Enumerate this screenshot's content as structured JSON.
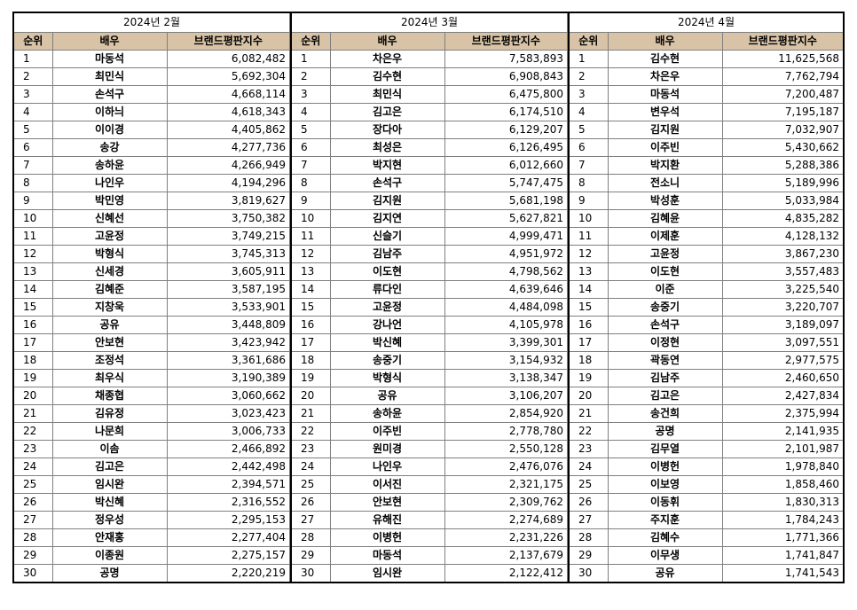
{
  "columns": {
    "rank": "순위",
    "actor": "배우",
    "score": "브랜드평판지수"
  },
  "months": [
    {
      "title": "2024년 2월",
      "rows": [
        {
          "rank": "1",
          "actor": "마동석",
          "score": "6,082,482"
        },
        {
          "rank": "2",
          "actor": "최민식",
          "score": "5,692,304"
        },
        {
          "rank": "3",
          "actor": "손석구",
          "score": "4,668,114"
        },
        {
          "rank": "4",
          "actor": "이하늬",
          "score": "4,618,343"
        },
        {
          "rank": "5",
          "actor": "이이경",
          "score": "4,405,862"
        },
        {
          "rank": "6",
          "actor": "송강",
          "score": "4,277,736"
        },
        {
          "rank": "7",
          "actor": "송하윤",
          "score": "4,266,949"
        },
        {
          "rank": "8",
          "actor": "나인우",
          "score": "4,194,296"
        },
        {
          "rank": "9",
          "actor": "박민영",
          "score": "3,819,627"
        },
        {
          "rank": "10",
          "actor": "신혜선",
          "score": "3,750,382"
        },
        {
          "rank": "11",
          "actor": "고윤정",
          "score": "3,749,215"
        },
        {
          "rank": "12",
          "actor": "박형식",
          "score": "3,745,313"
        },
        {
          "rank": "13",
          "actor": "신세경",
          "score": "3,605,911"
        },
        {
          "rank": "14",
          "actor": "김혜준",
          "score": "3,587,195"
        },
        {
          "rank": "15",
          "actor": "지창욱",
          "score": "3,533,901"
        },
        {
          "rank": "16",
          "actor": "공유",
          "score": "3,448,809"
        },
        {
          "rank": "17",
          "actor": "안보현",
          "score": "3,423,942"
        },
        {
          "rank": "18",
          "actor": "조정석",
          "score": "3,361,686"
        },
        {
          "rank": "19",
          "actor": "최우식",
          "score": "3,190,389"
        },
        {
          "rank": "20",
          "actor": "채종협",
          "score": "3,060,662"
        },
        {
          "rank": "21",
          "actor": "김유정",
          "score": "3,023,423"
        },
        {
          "rank": "22",
          "actor": "나문희",
          "score": "3,006,733"
        },
        {
          "rank": "23",
          "actor": "이솜",
          "score": "2,466,892"
        },
        {
          "rank": "24",
          "actor": "김고은",
          "score": "2,442,498"
        },
        {
          "rank": "25",
          "actor": "임시완",
          "score": "2,394,571"
        },
        {
          "rank": "26",
          "actor": "박신혜",
          "score": "2,316,552"
        },
        {
          "rank": "27",
          "actor": "정우성",
          "score": "2,295,153"
        },
        {
          "rank": "28",
          "actor": "안재홍",
          "score": "2,277,404"
        },
        {
          "rank": "29",
          "actor": "이종원",
          "score": "2,275,157"
        },
        {
          "rank": "30",
          "actor": "공명",
          "score": "2,220,219"
        }
      ]
    },
    {
      "title": "2024년 3월",
      "rows": [
        {
          "rank": "1",
          "actor": "차은우",
          "score": "7,583,893"
        },
        {
          "rank": "2",
          "actor": "김수현",
          "score": "6,908,843"
        },
        {
          "rank": "3",
          "actor": "최민식",
          "score": "6,475,800"
        },
        {
          "rank": "4",
          "actor": "김고은",
          "score": "6,174,510"
        },
        {
          "rank": "5",
          "actor": "장다아",
          "score": "6,129,207"
        },
        {
          "rank": "6",
          "actor": "최성은",
          "score": "6,126,495"
        },
        {
          "rank": "7",
          "actor": "박지현",
          "score": "6,012,660"
        },
        {
          "rank": "8",
          "actor": "손석구",
          "score": "5,747,475"
        },
        {
          "rank": "9",
          "actor": "김지원",
          "score": "5,681,198"
        },
        {
          "rank": "10",
          "actor": "김지연",
          "score": "5,627,821"
        },
        {
          "rank": "11",
          "actor": "신슬기",
          "score": "4,999,471"
        },
        {
          "rank": "12",
          "actor": "김남주",
          "score": "4,951,972"
        },
        {
          "rank": "13",
          "actor": "이도현",
          "score": "4,798,562"
        },
        {
          "rank": "14",
          "actor": "류다인",
          "score": "4,639,646"
        },
        {
          "rank": "15",
          "actor": "고윤정",
          "score": "4,484,098"
        },
        {
          "rank": "16",
          "actor": "강나언",
          "score": "4,105,978"
        },
        {
          "rank": "17",
          "actor": "박신혜",
          "score": "3,399,301"
        },
        {
          "rank": "18",
          "actor": "송중기",
          "score": "3,154,932"
        },
        {
          "rank": "19",
          "actor": "박형식",
          "score": "3,138,347"
        },
        {
          "rank": "20",
          "actor": "공유",
          "score": "3,106,207"
        },
        {
          "rank": "21",
          "actor": "송하윤",
          "score": "2,854,920"
        },
        {
          "rank": "22",
          "actor": "이주빈",
          "score": "2,778,780"
        },
        {
          "rank": "23",
          "actor": "원미경",
          "score": "2,550,128"
        },
        {
          "rank": "24",
          "actor": "나인우",
          "score": "2,476,076"
        },
        {
          "rank": "25",
          "actor": "이서진",
          "score": "2,321,175"
        },
        {
          "rank": "26",
          "actor": "안보현",
          "score": "2,309,762"
        },
        {
          "rank": "27",
          "actor": "유해진",
          "score": "2,274,689"
        },
        {
          "rank": "28",
          "actor": "이병헌",
          "score": "2,231,226"
        },
        {
          "rank": "29",
          "actor": "마동석",
          "score": "2,137,679"
        },
        {
          "rank": "30",
          "actor": "임시완",
          "score": "2,122,412"
        }
      ]
    },
    {
      "title": "2024년 4월",
      "rows": [
        {
          "rank": "1",
          "actor": "김수현",
          "score": "11,625,568"
        },
        {
          "rank": "2",
          "actor": "차은우",
          "score": "7,762,794"
        },
        {
          "rank": "3",
          "actor": "마동석",
          "score": "7,200,487"
        },
        {
          "rank": "4",
          "actor": "변우석",
          "score": "7,195,187"
        },
        {
          "rank": "5",
          "actor": "김지원",
          "score": "7,032,907"
        },
        {
          "rank": "6",
          "actor": "이주빈",
          "score": "5,430,662"
        },
        {
          "rank": "7",
          "actor": "박지환",
          "score": "5,288,386"
        },
        {
          "rank": "8",
          "actor": "전소니",
          "score": "5,189,996"
        },
        {
          "rank": "9",
          "actor": "박성훈",
          "score": "5,033,984"
        },
        {
          "rank": "10",
          "actor": "김혜윤",
          "score": "4,835,282"
        },
        {
          "rank": "11",
          "actor": "이제훈",
          "score": "4,128,132"
        },
        {
          "rank": "12",
          "actor": "고윤정",
          "score": "3,867,230"
        },
        {
          "rank": "13",
          "actor": "이도현",
          "score": "3,557,483"
        },
        {
          "rank": "14",
          "actor": "이준",
          "score": "3,225,540"
        },
        {
          "rank": "15",
          "actor": "송중기",
          "score": "3,220,707"
        },
        {
          "rank": "16",
          "actor": "손석구",
          "score": "3,189,097"
        },
        {
          "rank": "17",
          "actor": "이정현",
          "score": "3,097,551"
        },
        {
          "rank": "18",
          "actor": "곽동연",
          "score": "2,977,575"
        },
        {
          "rank": "19",
          "actor": "김남주",
          "score": "2,460,650"
        },
        {
          "rank": "20",
          "actor": "김고은",
          "score": "2,427,834"
        },
        {
          "rank": "21",
          "actor": "송건희",
          "score": "2,375,994"
        },
        {
          "rank": "22",
          "actor": "공명",
          "score": "2,141,935"
        },
        {
          "rank": "23",
          "actor": "김무열",
          "score": "2,101,987"
        },
        {
          "rank": "24",
          "actor": "이병헌",
          "score": "1,978,840"
        },
        {
          "rank": "25",
          "actor": "이보영",
          "score": "1,858,460"
        },
        {
          "rank": "26",
          "actor": "이동휘",
          "score": "1,830,313"
        },
        {
          "rank": "27",
          "actor": "주지훈",
          "score": "1,784,243"
        },
        {
          "rank": "28",
          "actor": "김혜수",
          "score": "1,771,366"
        },
        {
          "rank": "29",
          "actor": "이무생",
          "score": "1,741,847"
        },
        {
          "rank": "30",
          "actor": "공유",
          "score": "1,741,543"
        }
      ]
    }
  ]
}
